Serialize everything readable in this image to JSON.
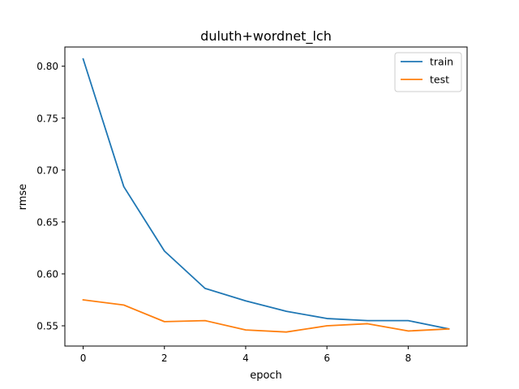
{
  "chart_data": {
    "type": "line",
    "title": "duluth+wordnet_lch",
    "xlabel": "epoch",
    "ylabel": "rmse",
    "x": [
      0,
      1,
      2,
      3,
      4,
      5,
      6,
      7,
      8,
      9
    ],
    "xlim": [
      -0.45,
      9.45
    ],
    "ylim": [
      0.5305,
      0.8185
    ],
    "xticks": [
      0,
      2,
      4,
      6,
      8
    ],
    "yticks": [
      0.55,
      0.6,
      0.65,
      0.7,
      0.75,
      0.8
    ],
    "ytick_labels": [
      "0.55",
      "0.60",
      "0.65",
      "0.70",
      "0.75",
      "0.80"
    ],
    "grid": false,
    "legend_position": "top-right",
    "series": [
      {
        "name": "train",
        "color": "#1f77b4",
        "values": [
          0.807,
          0.684,
          0.622,
          0.586,
          0.574,
          0.564,
          0.557,
          0.555,
          0.555,
          0.547
        ]
      },
      {
        "name": "test",
        "color": "#ff7f0e",
        "values": [
          0.575,
          0.57,
          0.554,
          0.555,
          0.546,
          0.544,
          0.55,
          0.552,
          0.545,
          0.547
        ]
      }
    ]
  }
}
